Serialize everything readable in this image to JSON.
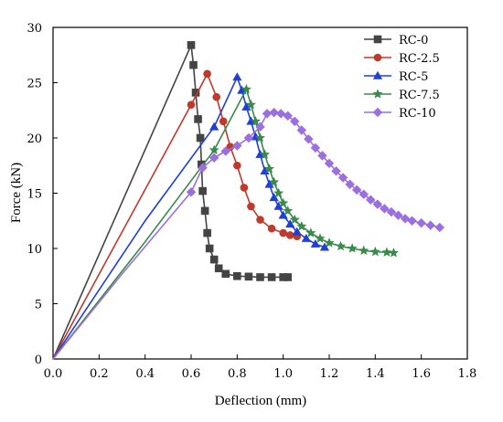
{
  "chart_data": {
    "type": "line",
    "title": "",
    "xlabel": "Deflection (mm)",
    "ylabel": "Force (kN)",
    "xlim": [
      0,
      1.8
    ],
    "ylim": [
      0,
      30
    ],
    "xticks": [
      0,
      0.2,
      0.4,
      0.6,
      0.8,
      1.0,
      1.2,
      1.4,
      1.6,
      1.8
    ],
    "xtick_labels": [
      "0.0",
      "0.2",
      "0.4",
      "0.6",
      "0.8",
      "1.0",
      "1.2",
      "1.4",
      "1.6",
      "1.8"
    ],
    "yticks": [
      0,
      5,
      10,
      15,
      20,
      25,
      30
    ],
    "ytick_labels": [
      "0",
      "5",
      "10",
      "15",
      "20",
      "25",
      "30"
    ],
    "grid": false,
    "legend": "top-right",
    "series": [
      {
        "name": "RC-0",
        "color": "#444444",
        "marker": "square",
        "x": [
          0,
          0.3,
          0.6,
          0.61,
          0.62,
          0.63,
          0.64,
          0.645,
          0.65,
          0.66,
          0.67,
          0.68,
          0.7,
          0.72,
          0.75,
          0.8,
          0.85,
          0.9,
          0.95,
          1.0,
          1.02
        ],
        "y": [
          0,
          14.2,
          28.4,
          26.6,
          24.1,
          21.7,
          20.0,
          17.6,
          15.2,
          13.4,
          11.4,
          10.0,
          9.0,
          8.2,
          7.7,
          7.5,
          7.45,
          7.4,
          7.4,
          7.4,
          7.4
        ]
      },
      {
        "name": "RC-2.5",
        "color": "#c03a2b",
        "marker": "circle",
        "x": [
          0,
          0.3,
          0.6,
          0.67,
          0.71,
          0.74,
          0.77,
          0.8,
          0.83,
          0.86,
          0.9,
          0.95,
          1.0,
          1.03,
          1.06
        ],
        "y": [
          0,
          11.5,
          23.0,
          25.8,
          23.7,
          21.5,
          19.2,
          17.5,
          15.5,
          13.8,
          12.6,
          11.8,
          11.4,
          11.2,
          11.1
        ]
      },
      {
        "name": "RC-5",
        "color": "#1f3fd6",
        "marker": "triangle",
        "x": [
          0,
          0.4,
          0.7,
          0.8,
          0.82,
          0.84,
          0.86,
          0.88,
          0.9,
          0.92,
          0.94,
          0.96,
          0.98,
          1.0,
          1.03,
          1.06,
          1.1,
          1.14,
          1.18
        ],
        "y": [
          0,
          12.5,
          21.0,
          25.5,
          24.3,
          22.8,
          21.5,
          20.1,
          18.5,
          17.0,
          15.8,
          14.6,
          13.8,
          13.0,
          12.2,
          11.5,
          10.9,
          10.4,
          10.1
        ]
      },
      {
        "name": "RC-7.5",
        "color": "#3a8a4a",
        "marker": "star",
        "x": [
          0,
          0.4,
          0.7,
          0.84,
          0.86,
          0.88,
          0.9,
          0.92,
          0.94,
          0.96,
          0.98,
          1.0,
          1.02,
          1.05,
          1.08,
          1.12,
          1.16,
          1.2,
          1.25,
          1.3,
          1.35,
          1.4,
          1.45,
          1.48
        ],
        "y": [
          0,
          10.6,
          18.9,
          24.4,
          23.0,
          21.5,
          20.0,
          18.5,
          17.2,
          16.0,
          15.0,
          14.1,
          13.4,
          12.6,
          12.0,
          11.4,
          10.9,
          10.5,
          10.2,
          10.0,
          9.8,
          9.7,
          9.65,
          9.6
        ]
      },
      {
        "name": "RC-10",
        "color": "#9b6fe0",
        "marker": "diamond",
        "x": [
          0,
          0.3,
          0.6,
          0.65,
          0.7,
          0.75,
          0.8,
          0.85,
          0.9,
          0.93,
          0.96,
          0.99,
          1.02,
          1.05,
          1.08,
          1.11,
          1.14,
          1.17,
          1.2,
          1.23,
          1.26,
          1.29,
          1.32,
          1.35,
          1.38,
          1.41,
          1.44,
          1.47,
          1.5,
          1.53,
          1.56,
          1.6,
          1.64,
          1.68
        ],
        "y": [
          0,
          7.7,
          15.1,
          17.3,
          18.2,
          18.8,
          19.3,
          20.0,
          21.0,
          22.2,
          22.3,
          22.2,
          22.0,
          21.5,
          20.7,
          19.9,
          19.1,
          18.4,
          17.7,
          17.0,
          16.4,
          15.8,
          15.3,
          14.9,
          14.4,
          14.0,
          13.6,
          13.3,
          13.0,
          12.7,
          12.5,
          12.3,
          12.1,
          11.9
        ]
      }
    ]
  }
}
